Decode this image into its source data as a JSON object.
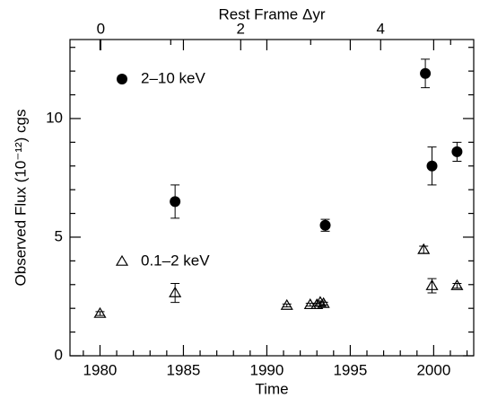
{
  "chart_data": {
    "type": "scatter",
    "x_label": "Time",
    "y_label": "Observed Flux (10⁻¹²) cgs",
    "x2_label": "Rest Frame Δyr",
    "xlim": [
      1978.2,
      2002.4
    ],
    "xticks": [
      1980,
      1985,
      1990,
      1995,
      2000
    ],
    "xticks_minor": [
      1979,
      1981,
      1982,
      1983,
      1984,
      1986,
      1987,
      1988,
      1989,
      1991,
      1992,
      1993,
      1994,
      1996,
      1997,
      1998,
      1999,
      2001,
      2002
    ],
    "x2lim": [
      -0.44,
      5.33
    ],
    "x2ticks": [
      0,
      2,
      4
    ],
    "x2ticks_minor": [
      1,
      3,
      5
    ],
    "ylim": [
      0,
      13.33
    ],
    "yticks": [
      0,
      5,
      10
    ],
    "yticks_minor": [
      1,
      2,
      3,
      4,
      6,
      7,
      8,
      9,
      11,
      12,
      13
    ],
    "series": [
      {
        "name": "2–10 keV",
        "marker": "filled-circle",
        "color": "#000000",
        "x": [
          1984.5,
          1993.5,
          1999.5,
          1999.9,
          2001.4
        ],
        "values": [
          6.5,
          5.5,
          11.9,
          8.0,
          8.6
        ],
        "errors": [
          0.7,
          0.25,
          0.6,
          0.8,
          0.4
        ]
      },
      {
        "name": "0.1–2 keV",
        "marker": "open-triangle",
        "color": "#000000",
        "x": [
          1980.0,
          1984.5,
          1991.2,
          1992.6,
          1993.0,
          1993.2,
          1993.4,
          1999.4,
          1999.9,
          2001.4
        ],
        "values": [
          1.78,
          2.65,
          2.12,
          2.15,
          2.15,
          2.25,
          2.2,
          4.47,
          2.95,
          2.95
        ],
        "errors": [
          0.08,
          0.4,
          0.06,
          0.06,
          0.06,
          0.06,
          0.06,
          0.15,
          0.3,
          0.1
        ]
      }
    ]
  }
}
